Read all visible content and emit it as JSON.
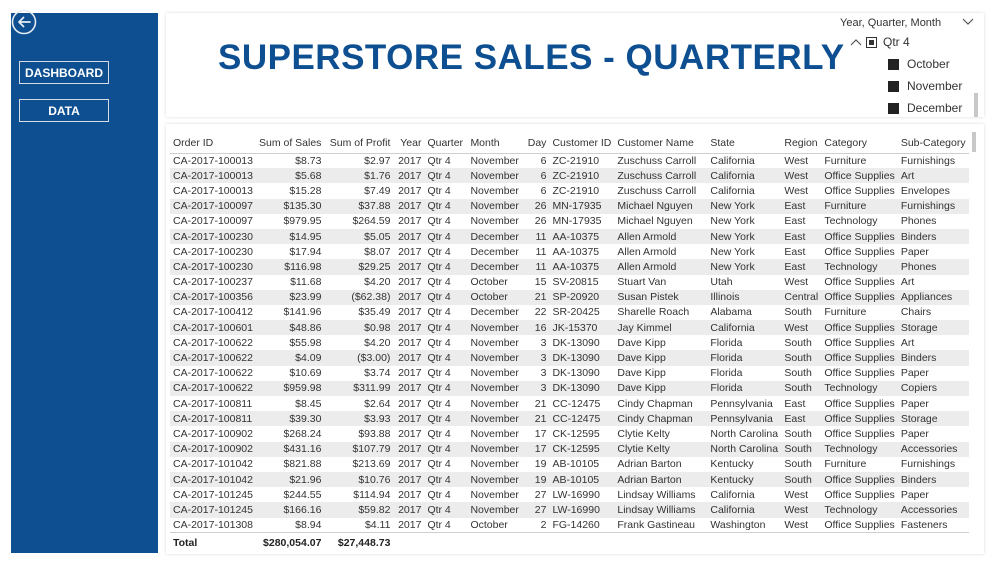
{
  "sidebar": {
    "back_icon": "back-arrow-circle-icon",
    "nav": [
      {
        "label": "DASHBOARD"
      },
      {
        "label": "DATA"
      }
    ]
  },
  "header": {
    "title": "SUPERSTORE SALES - QUARTERLY"
  },
  "slicer": {
    "title": "Year, Quarter, Month",
    "quarter": "Qtr 4",
    "months": [
      "October",
      "November",
      "December"
    ]
  },
  "table": {
    "columns": [
      "Order ID",
      "Sum of Sales",
      "Sum of Profit",
      "Year",
      "Quarter",
      "Month",
      "Day",
      "Customer ID",
      "Customer Name",
      "State",
      "Region",
      "Category",
      "Sub-Category"
    ],
    "rows": [
      [
        "CA-2017-100013",
        "$8.73",
        "$2.97",
        "2017",
        "Qtr 4",
        "November",
        "6",
        "ZC-21910",
        "Zuschuss Carroll",
        "California",
        "West",
        "Furniture",
        "Furnishings"
      ],
      [
        "CA-2017-100013",
        "$5.68",
        "$1.76",
        "2017",
        "Qtr 4",
        "November",
        "6",
        "ZC-21910",
        "Zuschuss Carroll",
        "California",
        "West",
        "Office Supplies",
        "Art"
      ],
      [
        "CA-2017-100013",
        "$15.28",
        "$7.49",
        "2017",
        "Qtr 4",
        "November",
        "6",
        "ZC-21910",
        "Zuschuss Carroll",
        "California",
        "West",
        "Office Supplies",
        "Envelopes"
      ],
      [
        "CA-2017-100097",
        "$135.30",
        "$37.88",
        "2017",
        "Qtr 4",
        "November",
        "26",
        "MN-17935",
        "Michael Nguyen",
        "New York",
        "East",
        "Furniture",
        "Furnishings"
      ],
      [
        "CA-2017-100097",
        "$979.95",
        "$264.59",
        "2017",
        "Qtr 4",
        "November",
        "26",
        "MN-17935",
        "Michael Nguyen",
        "New York",
        "East",
        "Technology",
        "Phones"
      ],
      [
        "CA-2017-100230",
        "$14.95",
        "$5.05",
        "2017",
        "Qtr 4",
        "December",
        "11",
        "AA-10375",
        "Allen Armold",
        "New York",
        "East",
        "Office Supplies",
        "Binders"
      ],
      [
        "CA-2017-100230",
        "$17.94",
        "$8.07",
        "2017",
        "Qtr 4",
        "December",
        "11",
        "AA-10375",
        "Allen Armold",
        "New York",
        "East",
        "Office Supplies",
        "Paper"
      ],
      [
        "CA-2017-100230",
        "$116.98",
        "$29.25",
        "2017",
        "Qtr 4",
        "December",
        "11",
        "AA-10375",
        "Allen Armold",
        "New York",
        "East",
        "Technology",
        "Phones"
      ],
      [
        "CA-2017-100237",
        "$11.68",
        "$4.20",
        "2017",
        "Qtr 4",
        "October",
        "15",
        "SV-20815",
        "Stuart Van",
        "Utah",
        "West",
        "Office Supplies",
        "Art"
      ],
      [
        "CA-2017-100356",
        "$23.99",
        "($62.38)",
        "2017",
        "Qtr 4",
        "October",
        "21",
        "SP-20920",
        "Susan Pistek",
        "Illinois",
        "Central",
        "Office Supplies",
        "Appliances"
      ],
      [
        "CA-2017-100412",
        "$141.96",
        "$35.49",
        "2017",
        "Qtr 4",
        "December",
        "22",
        "SR-20425",
        "Sharelle Roach",
        "Alabama",
        "South",
        "Furniture",
        "Chairs"
      ],
      [
        "CA-2017-100601",
        "$48.86",
        "$0.98",
        "2017",
        "Qtr 4",
        "November",
        "16",
        "JK-15370",
        "Jay Kimmel",
        "California",
        "West",
        "Office Supplies",
        "Storage"
      ],
      [
        "CA-2017-100622",
        "$55.98",
        "$4.20",
        "2017",
        "Qtr 4",
        "November",
        "3",
        "DK-13090",
        "Dave Kipp",
        "Florida",
        "South",
        "Office Supplies",
        "Art"
      ],
      [
        "CA-2017-100622",
        "$4.09",
        "($3.00)",
        "2017",
        "Qtr 4",
        "November",
        "3",
        "DK-13090",
        "Dave Kipp",
        "Florida",
        "South",
        "Office Supplies",
        "Binders"
      ],
      [
        "CA-2017-100622",
        "$10.69",
        "$3.74",
        "2017",
        "Qtr 4",
        "November",
        "3",
        "DK-13090",
        "Dave Kipp",
        "Florida",
        "South",
        "Office Supplies",
        "Paper"
      ],
      [
        "CA-2017-100622",
        "$959.98",
        "$311.99",
        "2017",
        "Qtr 4",
        "November",
        "3",
        "DK-13090",
        "Dave Kipp",
        "Florida",
        "South",
        "Technology",
        "Copiers"
      ],
      [
        "CA-2017-100811",
        "$8.45",
        "$2.64",
        "2017",
        "Qtr 4",
        "November",
        "21",
        "CC-12475",
        "Cindy Chapman",
        "Pennsylvania",
        "East",
        "Office Supplies",
        "Paper"
      ],
      [
        "CA-2017-100811",
        "$39.30",
        "$3.93",
        "2017",
        "Qtr 4",
        "November",
        "21",
        "CC-12475",
        "Cindy Chapman",
        "Pennsylvania",
        "East",
        "Office Supplies",
        "Storage"
      ],
      [
        "CA-2017-100902",
        "$268.24",
        "$93.88",
        "2017",
        "Qtr 4",
        "November",
        "17",
        "CK-12595",
        "Clytie Kelty",
        "North Carolina",
        "South",
        "Office Supplies",
        "Paper"
      ],
      [
        "CA-2017-100902",
        "$431.16",
        "$107.79",
        "2017",
        "Qtr 4",
        "November",
        "17",
        "CK-12595",
        "Clytie Kelty",
        "North Carolina",
        "South",
        "Technology",
        "Accessories"
      ],
      [
        "CA-2017-101042",
        "$821.88",
        "$213.69",
        "2017",
        "Qtr 4",
        "November",
        "19",
        "AB-10105",
        "Adrian Barton",
        "Kentucky",
        "South",
        "Furniture",
        "Furnishings"
      ],
      [
        "CA-2017-101042",
        "$21.96",
        "$10.76",
        "2017",
        "Qtr 4",
        "November",
        "19",
        "AB-10105",
        "Adrian Barton",
        "Kentucky",
        "South",
        "Office Supplies",
        "Binders"
      ],
      [
        "CA-2017-101245",
        "$244.55",
        "$114.94",
        "2017",
        "Qtr 4",
        "November",
        "27",
        "LW-16990",
        "Lindsay Williams",
        "California",
        "West",
        "Office Supplies",
        "Paper"
      ],
      [
        "CA-2017-101245",
        "$166.16",
        "$59.82",
        "2017",
        "Qtr 4",
        "November",
        "27",
        "LW-16990",
        "Lindsay Williams",
        "California",
        "West",
        "Technology",
        "Accessories"
      ],
      [
        "CA-2017-101308",
        "$8.94",
        "$4.11",
        "2017",
        "Qtr 4",
        "October",
        "2",
        "FG-14260",
        "Frank Gastineau",
        "Washington",
        "West",
        "Office Supplies",
        "Fasteners"
      ]
    ],
    "total": {
      "label": "Total",
      "sales": "$280,054.07",
      "profit": "$27,448.73"
    }
  },
  "colors": {
    "brand_blue": "#0d4f91"
  }
}
